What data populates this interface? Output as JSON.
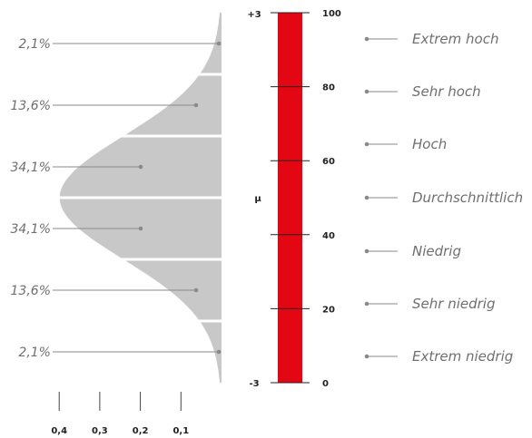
{
  "distribution": {
    "segments": [
      {
        "percent_label": "2,1%",
        "value": 0.0214
      },
      {
        "percent_label": "13,6%",
        "value": 0.1359
      },
      {
        "percent_label": "34,1%",
        "value": 0.3413
      },
      {
        "percent_label": "34,1%",
        "value": 0.3413
      },
      {
        "percent_label": "13,6%",
        "value": 0.1359
      },
      {
        "percent_label": "2,1%",
        "value": 0.0214
      }
    ],
    "density_ticks": [
      {
        "label": "0,4",
        "value": 0.4
      },
      {
        "label": "0,3",
        "value": 0.3
      },
      {
        "label": "0,2",
        "value": 0.2
      },
      {
        "label": "0,1",
        "value": 0.1
      }
    ]
  },
  "scale": {
    "top_label": "+3",
    "bottom_label": "-3",
    "mean_label": "μ",
    "ticks": [
      {
        "label": "100",
        "value": 100
      },
      {
        "label": "80",
        "value": 80
      },
      {
        "label": "60",
        "value": 60
      },
      {
        "label": "40",
        "value": 40
      },
      {
        "label": "20",
        "value": 20
      },
      {
        "label": "0",
        "value": 0
      }
    ],
    "bar_color": "#e30613"
  },
  "categories": [
    "Extrem hoch",
    "Sehr hoch",
    "Hoch",
    "Durchschnittlich",
    "Niedrig",
    "Sehr niedrig",
    "Extrem niedrig"
  ],
  "colors": {
    "curve_fill": "#c8c8c8",
    "line": "#8a8a8a",
    "text": "#6f6f6f",
    "axis_text": "#222222"
  }
}
